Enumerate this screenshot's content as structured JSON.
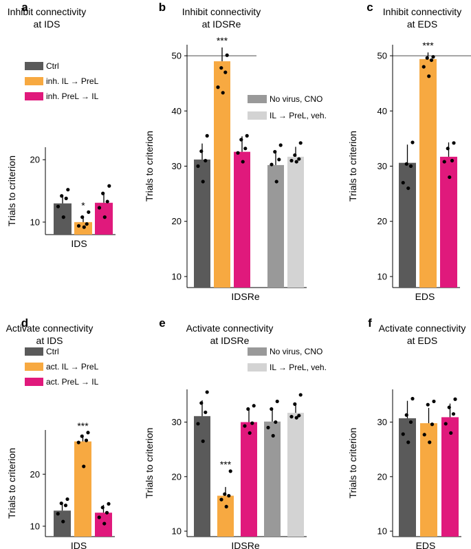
{
  "colors": {
    "ctrl": "#5a5a5a",
    "orange": "#f7a941",
    "magenta": "#e0197c",
    "novirus": "#999999",
    "veh": "#d3d3d3"
  },
  "chart_data": [
    {
      "type": "bar",
      "letter": "a",
      "title": [
        "Inhibit connectivity",
        "at IDS"
      ],
      "ylabel": "Trials to criterion",
      "xlabel": "IDS",
      "ylim": [
        8,
        22
      ],
      "yticks": [
        10,
        20
      ],
      "legend": [
        "Ctrl",
        "inh. IL → PreL",
        "inh. PreL → IL"
      ],
      "series": [
        {
          "name": "Ctrl",
          "color": "ctrl",
          "value": 13.0,
          "error": 1.3,
          "points": [
            15.2,
            14.2,
            13.8,
            12.5,
            10.8
          ],
          "sig": ""
        },
        {
          "name": "inh. IL → PreL",
          "color": "orange",
          "value": 10.0,
          "error": 1.0,
          "points": [
            11.6,
            10.8,
            9.7,
            9.4,
            9.2
          ],
          "sig": "*"
        },
        {
          "name": "inh. PreL → IL",
          "color": "magenta",
          "value": 13.1,
          "error": 1.3,
          "points": [
            15.8,
            14.6,
            13.3,
            12.3,
            10.8
          ],
          "sig": ""
        }
      ]
    },
    {
      "type": "bar",
      "letter": "b",
      "title": [
        "Inhibit connectivity",
        "at IDSRe"
      ],
      "ylabel": "Trials to criterion",
      "xlabel": "IDSRe",
      "ylim": [
        8,
        52
      ],
      "yticks": [
        10,
        20,
        30,
        40,
        50
      ],
      "reference_line": 50,
      "legend": [
        "No virus, CNO",
        "IL → PreL, veh."
      ],
      "series": [
        {
          "name": "Ctrl",
          "color": "ctrl",
          "value": 31.2,
          "error": 2.9,
          "points": [
            35.5,
            32.7,
            31.0,
            30.0,
            27.2
          ],
          "sig": ""
        },
        {
          "name": "inh. IL → PreL",
          "color": "orange",
          "value": 49.0,
          "error": 2.5,
          "points": [
            50.1,
            47.8,
            47.0,
            44.3,
            43.3
          ],
          "sig": "***"
        },
        {
          "name": "inh. PreL → IL",
          "color": "magenta",
          "value": 32.6,
          "error": 2.8,
          "points": [
            35.5,
            34.8,
            33.2,
            32.4,
            30.8
          ],
          "sig": ""
        },
        {
          "name": "No virus, CNO",
          "color": "novirus",
          "value": 30.2,
          "error": 2.2,
          "points": [
            33.8,
            32.6,
            31.2,
            30.3,
            27.2
          ],
          "sig": "",
          "gap_before": true
        },
        {
          "name": "IL → PreL, veh.",
          "color": "veh",
          "value": 31.7,
          "error": 1.8,
          "points": [
            34.2,
            32.0,
            31.3,
            31.0,
            30.8
          ],
          "sig": ""
        }
      ]
    },
    {
      "type": "bar",
      "letter": "c",
      "title": [
        "Inhibit connectivity",
        "at EDS"
      ],
      "ylabel": "Trials to criterion",
      "xlabel": "EDS",
      "ylim": [
        8,
        52
      ],
      "yticks": [
        10,
        20,
        30,
        40,
        50
      ],
      "reference_line": 50,
      "legend": [],
      "series": [
        {
          "name": "Ctrl",
          "color": "ctrl",
          "value": 30.6,
          "error": 3.3,
          "points": [
            34.3,
            30.4,
            30.0,
            27.0,
            26.0
          ],
          "sig": ""
        },
        {
          "name": "inh. IL → PreL",
          "color": "orange",
          "value": 49.4,
          "error": 1.2,
          "points": [
            49.8,
            49.6,
            49.2,
            48.0,
            46.3
          ],
          "sig": "***"
        },
        {
          "name": "inh. PreL → IL",
          "color": "magenta",
          "value": 31.7,
          "error": 2.6,
          "points": [
            34.2,
            33.2,
            31.0,
            30.8,
            28.0
          ],
          "sig": ""
        }
      ]
    },
    {
      "type": "bar",
      "letter": "d",
      "title": [
        "Activate connectivity",
        "at IDS"
      ],
      "ylabel": "Trials to criterion",
      "xlabel": "IDS",
      "ylim": [
        8,
        28.5
      ],
      "yticks": [
        10,
        20
      ],
      "legend": [
        "Ctrl",
        "act. IL → PreL",
        "act. PreL → IL"
      ],
      "series": [
        {
          "name": "Ctrl",
          "color": "ctrl",
          "value": 13.0,
          "error": 1.4,
          "points": [
            15.2,
            14.4,
            14.0,
            12.4,
            10.9
          ],
          "sig": ""
        },
        {
          "name": "act. IL → PreL",
          "color": "orange",
          "value": 26.3,
          "error": 1.3,
          "points": [
            28.0,
            27.3,
            26.5,
            26.1,
            21.5
          ],
          "sig": "***"
        },
        {
          "name": "act. PreL → IL",
          "color": "magenta",
          "value": 12.6,
          "error": 1.5,
          "points": [
            14.3,
            13.6,
            12.6,
            11.7,
            10.5
          ],
          "sig": ""
        }
      ]
    },
    {
      "type": "bar",
      "letter": "e",
      "title": [
        "Activate connectivity",
        "at IDSRe"
      ],
      "ylabel": "Trials to criterion",
      "xlabel": "IDSRe",
      "ylim": [
        9,
        36
      ],
      "yticks": [
        10,
        20,
        30
      ],
      "legend": [
        "No virus, CNO",
        "IL → PreL, veh."
      ],
      "series": [
        {
          "name": "Ctrl",
          "color": "ctrl",
          "value": 31.1,
          "error": 2.9,
          "points": [
            35.5,
            33.5,
            31.8,
            29.7,
            26.5
          ],
          "sig": ""
        },
        {
          "name": "act. IL → PreL",
          "color": "orange",
          "value": 16.5,
          "error": 1.6,
          "points": [
            21.0,
            16.8,
            16.5,
            15.8,
            14.5
          ],
          "sig": "***"
        },
        {
          "name": "act. PreL → IL",
          "color": "magenta",
          "value": 30.0,
          "error": 2.3,
          "points": [
            33.0,
            32.4,
            29.8,
            29.3,
            28.0
          ],
          "sig": ""
        },
        {
          "name": "No virus, CNO",
          "color": "novirus",
          "value": 30.1,
          "error": 2.3,
          "points": [
            33.8,
            32.4,
            30.0,
            29.0,
            27.5
          ],
          "sig": ""
        },
        {
          "name": "IL → PreL, veh.",
          "color": "veh",
          "value": 31.7,
          "error": 1.8,
          "points": [
            35.0,
            33.3,
            31.2,
            31.0,
            30.8
          ],
          "sig": ""
        }
      ]
    },
    {
      "type": "bar",
      "letter": "f",
      "title": [
        "Activate connectivity",
        "at EDS"
      ],
      "ylabel": "Trials to criterion",
      "xlabel": "EDS",
      "ylim": [
        9,
        36
      ],
      "yticks": [
        10,
        20,
        30
      ],
      "legend": [],
      "series": [
        {
          "name": "Ctrl",
          "color": "ctrl",
          "value": 30.7,
          "error": 3.2,
          "points": [
            34.3,
            31.3,
            30.0,
            27.8,
            26.3
          ],
          "sig": ""
        },
        {
          "name": "act. IL → PreL",
          "color": "orange",
          "value": 29.8,
          "error": 2.8,
          "points": [
            33.8,
            33.2,
            29.6,
            27.7,
            26.3
          ],
          "sig": ""
        },
        {
          "name": "act. PreL → IL",
          "color": "magenta",
          "value": 30.9,
          "error": 2.5,
          "points": [
            34.2,
            32.7,
            31.5,
            29.7,
            28.0
          ],
          "sig": ""
        }
      ]
    }
  ]
}
